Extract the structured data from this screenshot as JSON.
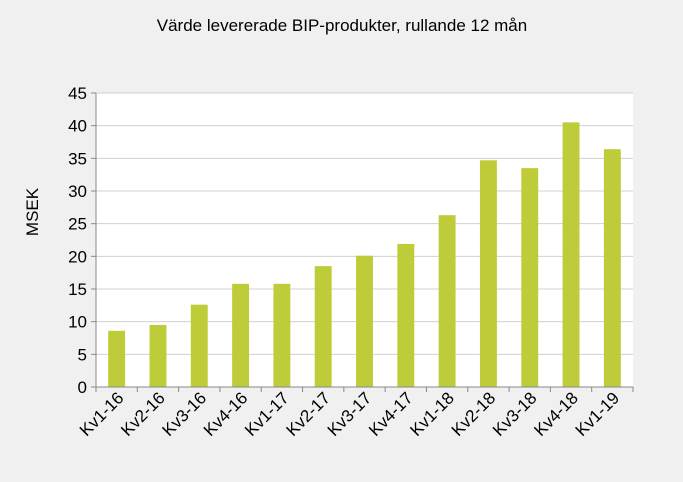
{
  "chart_data": {
    "type": "bar",
    "title": "Värde levererade BIP-produkter, rullande  12 mån",
    "xlabel": "",
    "ylabel": "MSEK",
    "ylim": [
      0,
      45
    ],
    "yticks": [
      0,
      5,
      10,
      15,
      20,
      25,
      30,
      35,
      40,
      45
    ],
    "grid": true,
    "legend": "none",
    "categories": [
      "Kv1-16",
      "Kv2-16",
      "Kv3-16",
      "Kv4-16",
      "Kv1-17",
      "Kv2-17",
      "Kv3-17",
      "Kv4-17",
      "Kv1-18",
      "Kv2-18",
      "Kv3-18",
      "Kv4-18",
      "Kv1-19"
    ],
    "values": [
      8.6,
      9.5,
      12.6,
      15.8,
      15.8,
      18.5,
      20.1,
      21.9,
      26.3,
      34.7,
      33.5,
      40.5,
      36.4
    ],
    "bar_color": "#bfcc3a",
    "plot_background": "#ffffff",
    "page_background": "#f0f0f0",
    "grid_color": "#d0d0d0"
  }
}
